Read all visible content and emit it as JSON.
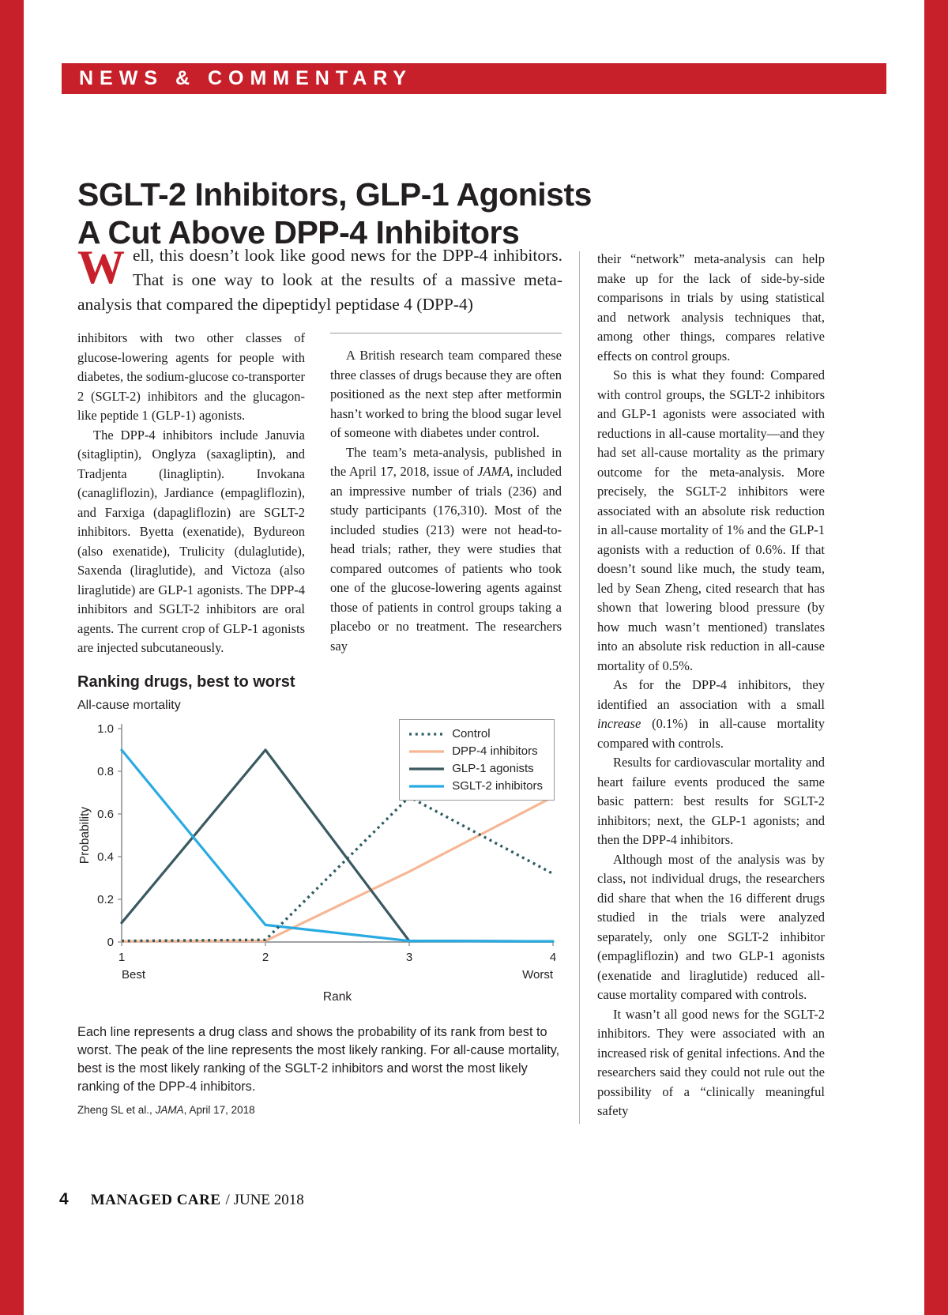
{
  "header": {
    "label": "NEWS & COMMENTARY"
  },
  "article": {
    "title_line1": "SGLT-2 Inhibitors, GLP-1 Agonists",
    "title_line2": "A Cut Above DPP-4 Inhibitors",
    "dropcap": "W",
    "lead": "ell, this doesn’t look like good news for the DPP-4 inhibitors. That is one way to look at the results of a massive meta-analysis that compared the dipeptidyl peptidase 4 (DPP-4)",
    "col1": {
      "p1": "inhibitors with two other classes of glucose-lowering agents for people with diabetes, the sodium-glucose co-transporter 2 (SGLT-2) inhibitors and the glucagon-like peptide 1 (GLP-1) agonists.",
      "p2": "The DPP-4 inhibitors include Januvia (sitagliptin), Onglyza (saxagliptin), and Tradjenta (linagliptin). Invokana (canagliflozin), Jardiance (empagliflozin), and Farxiga (dapagliflozin) are SGLT-2 inhibitors. Byetta (exenatide), Bydureon (also exenatide), Trulicity (dulaglutide), Saxenda (liraglutide), and Victoza (also liraglutide) are GLP-1 agonists. The DPP-4 inhibitors and SGLT-2 inhibitors are oral agents. The current crop of GLP-1 agonists are injected subcutaneously."
    },
    "col2": {
      "p1": "A British research team compared these three classes of drugs because they are often positioned as the next step after metformin hasn’t worked to bring the blood sugar level of someone with diabetes under control.",
      "p2a": "The team’s meta-analysis, published in the April 17, 2018, issue of ",
      "p2i": "JAMA,",
      "p2b": " included an impressive number of trials (236) and study participants (176,310). Most of the included studies (213) were not head-to-head trials; rather, they were studies that compared outcomes of patients who took one of the glucose-lowering agents against those of patients in control groups taking a placebo or no treatment. The researchers say"
    },
    "col3": {
      "p1": "their “network” meta-analysis can help make up for the lack of side-by-side comparisons in trials by using statistical and network analysis techniques that, among other things, compares relative effects on control groups.",
      "p2": "So this is what they found: Compared with control groups, the SGLT-2 inhibitors and GLP-1 agonists were associated with reductions in all-cause mortality—and they had set all-cause mortality as the primary outcome for the meta-analysis. More precisely, the SGLT-2 inhibitors were associated with an absolute risk reduction in all-cause mortality of 1% and the GLP-1 agonists with a reduction of 0.6%. If that doesn’t sound like much, the study team, led by Sean Zheng, cited research that has shown that lowering blood pressure (by how much wasn’t mentioned) translates into an absolute risk reduction in all-cause mortality of 0.5%.",
      "p3a": "As for the DPP-4 inhibitors, they identified an association with a small ",
      "p3i": "increase",
      "p3b": " (0.1%) in all-cause mortality compared with controls.",
      "p4": "Results for cardiovascular mortality and heart failure events produced the same basic pattern: best results for SGLT-2 inhibitors; next, the GLP-1 agonists; and then the DPP-4 inhibitors.",
      "p5": "Although most of the analysis was by class, not individual drugs, the researchers did share that when the 16 different drugs studied in the trials were analyzed separately, only one SGLT-2 inhibitor (empagliflozin) and two GLP-1 agonists (exenatide and liraglutide) reduced all-cause mortality compared with controls.",
      "p6": "It wasn’t all good news for the SGLT-2 inhibitors. They were associated with an increased risk of genital infections. And the researchers said they could not rule out the possibility of a “clinically meaningful safety"
    }
  },
  "chart_data": {
    "type": "line",
    "title": "Ranking drugs, best to worst",
    "subtitle": "All-cause mortality",
    "xlabel": "Rank",
    "ylabel": "Probability",
    "x": [
      1,
      2,
      3,
      4
    ],
    "xtick_labels": [
      "1",
      "2",
      "3",
      "4"
    ],
    "x_sub_left": "Best",
    "x_sub_right": "Worst",
    "ylim": [
      0,
      1.0
    ],
    "yticks": [
      0,
      0.2,
      0.4,
      0.6,
      0.8,
      1.0
    ],
    "ytick_labels": [
      "0",
      "0.2",
      "0.4",
      "0.6",
      "0.8",
      "1.0"
    ],
    "grid": false,
    "legend_position": "top-right",
    "series": [
      {
        "name": "Control",
        "style": "dotted",
        "color": "#2e5d63",
        "values": [
          0.005,
          0.01,
          0.68,
          0.32
        ]
      },
      {
        "name": "DPP-4 inhibitors",
        "style": "solid",
        "color": "#f7b795",
        "values": [
          0.003,
          0.005,
          0.33,
          0.68
        ]
      },
      {
        "name": "GLP-1 agonists",
        "style": "solid",
        "color": "#3a5960",
        "values": [
          0.09,
          0.9,
          0.005,
          0.003
        ]
      },
      {
        "name": "SGLT-2 inhibitors",
        "style": "solid",
        "color": "#29abe2",
        "values": [
          0.9,
          0.08,
          0.005,
          0.003
        ]
      }
    ]
  },
  "figure": {
    "caption": "Each line represents a drug class and shows the probability of its rank from best to worst. The peak of the line represents the most likely ranking. For all-cause mortality, best is the most likely ranking of the SGLT-2 inhibitors and worst the most likely ranking of the DPP-4 inhibitors.",
    "source_a": "Zheng SL et al., ",
    "source_i": "JAMA",
    "source_b": ", April 17, 2018"
  },
  "footer": {
    "page_number": "4",
    "magazine": "MANAGED CARE",
    "issue": "/ JUNE 2018"
  },
  "colors": {
    "accent_red": "#c7202b",
    "ink": "#231f20",
    "axis_gray": "#808285"
  }
}
